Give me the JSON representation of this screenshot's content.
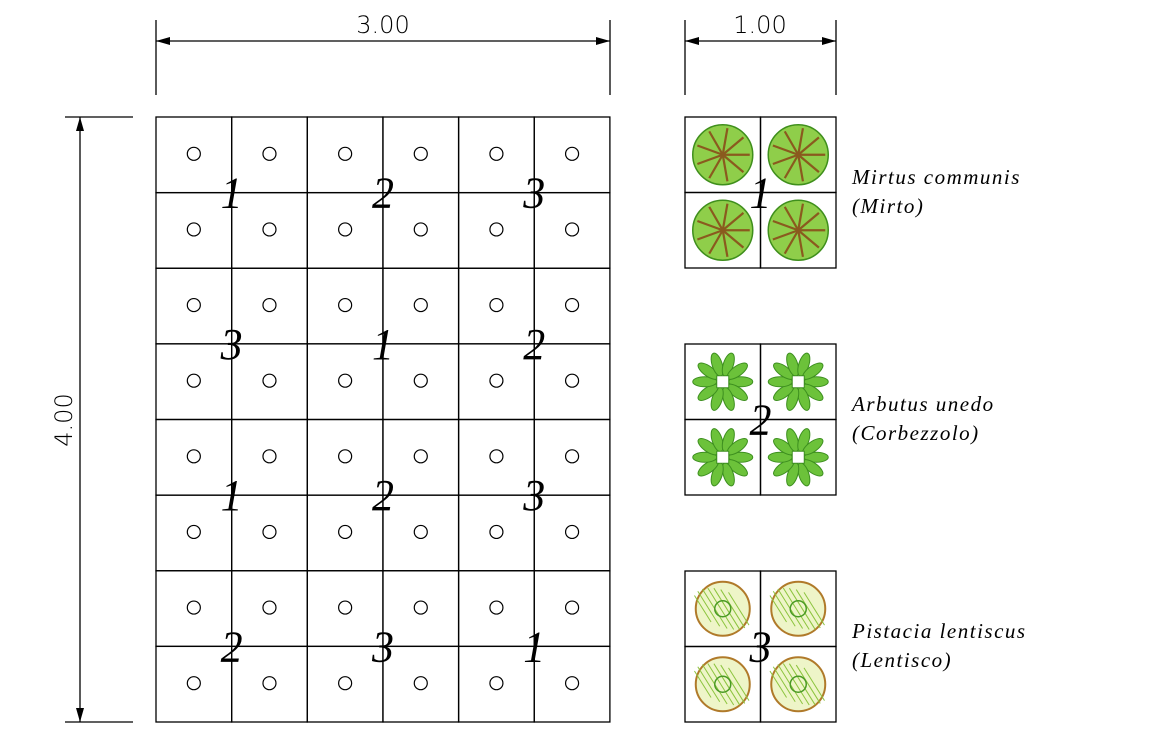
{
  "dimensions": {
    "width": "3.00",
    "legend_width": "1.00",
    "height": "4.00"
  },
  "grid": {
    "rows": [
      [
        "1",
        "2",
        "3"
      ],
      [
        "3",
        "1",
        "2"
      ],
      [
        "1",
        "2",
        "3"
      ],
      [
        "2",
        "3",
        "1"
      ]
    ]
  },
  "legend": [
    {
      "number": "1",
      "name": "Mirtus communis",
      "common": "(Mirto)"
    },
    {
      "number": "2",
      "name": "Arbutus unedo",
      "common": "(Corbezzolo)"
    },
    {
      "number": "3",
      "name": "Pistacia lentiscus",
      "common": "(Lentisco)"
    }
  ]
}
